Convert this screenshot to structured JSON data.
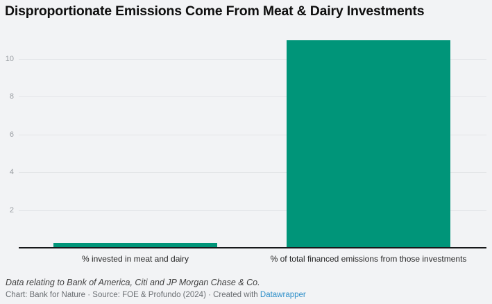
{
  "header": {
    "title": "Disproportionate Emissions Come From Meat & Dairy Investments"
  },
  "chart_data": {
    "type": "bar",
    "categories": [
      "% invested in meat and dairy",
      "% of total financed emissions from those investments"
    ],
    "values": [
      0.25,
      11
    ],
    "title": "Disproportionate Emissions Come From Meat & Dairy Investments",
    "xlabel": "",
    "ylabel": "",
    "ylim": [
      0,
      11.35
    ],
    "yticks": [
      2,
      4,
      6,
      8,
      10
    ],
    "grid": true,
    "legend": "none",
    "bar_color": "#009579"
  },
  "footer": {
    "note": "Data relating to Bank of America, Citi and JP Morgan Chase & Co.",
    "byline_prefix": "Chart: Bank for Nature · Source: FOE & Profundo (2024) · Created with ",
    "link_label": "Datawrapper"
  },
  "colors": {
    "background": "#f2f3f5",
    "bar": "#009579",
    "gridline": "#e3e5e8",
    "tick_label": "#9a9ea3",
    "axis_line": "#17181a",
    "category_label": "#262626",
    "title": "#0f0f0f",
    "note": "#3f3f3f",
    "byline": "#696d71",
    "link": "#2e8fc9"
  }
}
